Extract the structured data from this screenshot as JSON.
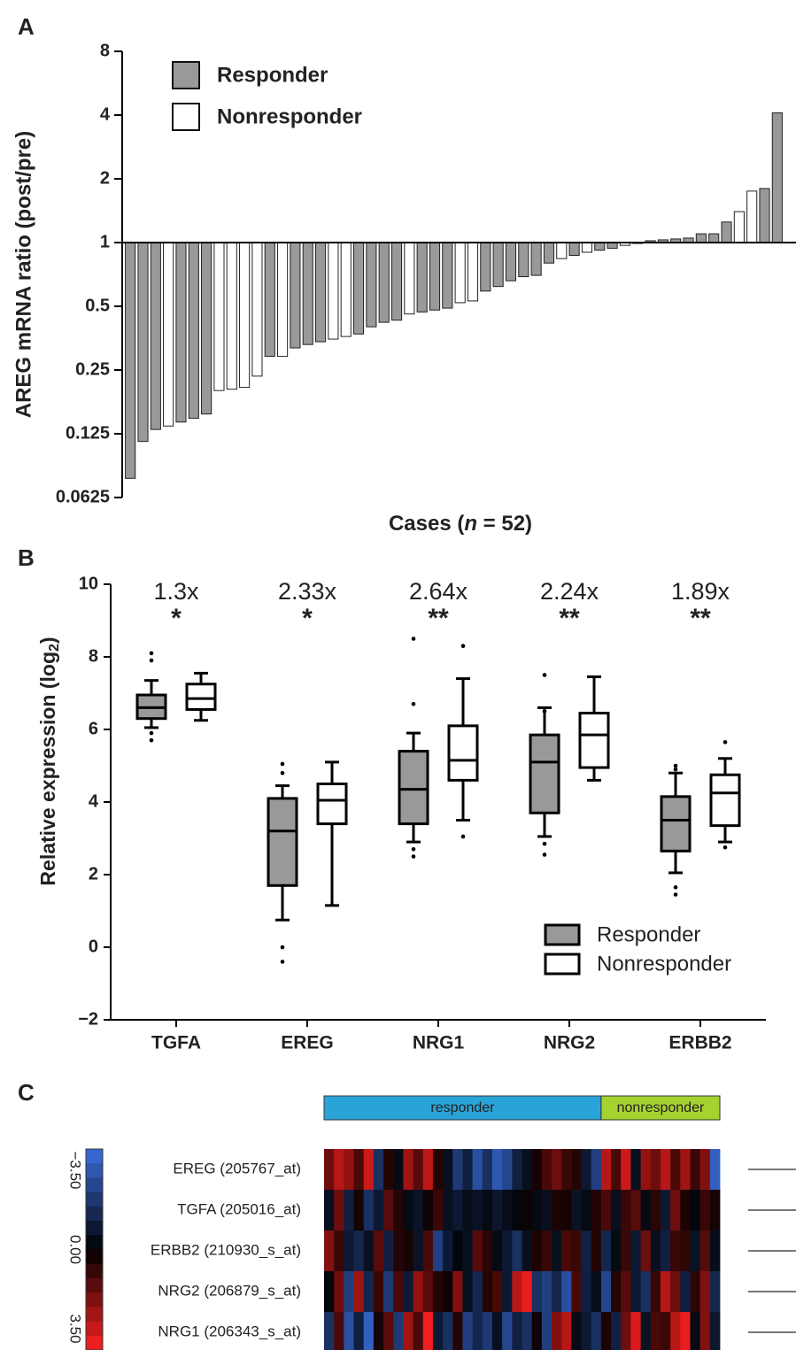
{
  "chart_data": [
    {
      "type": "bar",
      "panel": "A",
      "log_scale": true,
      "base": 2,
      "ylabel": "AREG mRNA ratio (post/pre)",
      "xlabel": [
        "Cases (",
        "n",
        " = 52)"
      ],
      "ylim": [
        0.0625,
        8
      ],
      "yticks": [
        0.0625,
        0.125,
        0.25,
        0.5,
        1,
        2,
        4,
        8
      ],
      "baseline": 1,
      "series": [
        {
          "name": "Responder",
          "color": "#999999",
          "values": [
            0.077,
            0.115,
            0.131,
            null,
            0.142,
            0.148,
            0.155,
            null,
            null,
            null,
            null,
            0.29,
            null,
            0.318,
            0.33,
            0.34,
            null,
            null,
            0.37,
            0.4,
            0.42,
            0.43,
            null,
            0.47,
            0.48,
            0.49,
            null,
            null,
            0.59,
            0.62,
            0.66,
            0.69,
            0.7,
            0.8,
            null,
            0.87,
            null,
            0.92,
            0.94,
            null,
            0.99,
            1.02,
            1.03,
            1.04,
            1.05,
            1.1,
            1.1,
            1.25,
            null,
            null,
            1.8,
            4.1
          ]
        },
        {
          "name": "Nonresponder",
          "color": "#ffffff",
          "values": [
            null,
            null,
            null,
            0.136,
            null,
            null,
            null,
            0.2,
            0.203,
            0.207,
            0.234,
            null,
            0.29,
            null,
            null,
            null,
            0.35,
            0.36,
            null,
            null,
            null,
            null,
            0.46,
            null,
            null,
            null,
            0.52,
            0.53,
            null,
            null,
            null,
            null,
            null,
            null,
            0.84,
            null,
            0.9,
            null,
            null,
            0.97,
            null,
            null,
            null,
            null,
            null,
            null,
            null,
            null,
            1.4,
            1.75,
            null,
            null
          ]
        }
      ]
    },
    {
      "type": "box",
      "panel": "B",
      "ylabel": [
        "Relative expression (log",
        "2",
        ")"
      ],
      "categories": [
        "TGFA",
        "EREG",
        "NRG1",
        "NRG2",
        "ERBB2"
      ],
      "fold": [
        "1.3x",
        "2.33x",
        "2.64x",
        "2.24x",
        "1.89x"
      ],
      "significance": [
        "*",
        "*",
        "**",
        "**",
        "**"
      ],
      "ylim": [
        -2,
        10
      ],
      "yticks": [
        {
          "value": -2,
          "label": "−2"
        },
        0,
        2,
        4,
        6,
        8,
        10
      ],
      "series": [
        {
          "name": "Responder",
          "color": "#999999",
          "boxes": [
            {
              "low": 6.05,
              "q1": 6.3,
              "median": 6.6,
              "q3": 6.95,
              "high": 7.35,
              "outliers": [
                8.1,
                7.9,
                5.9,
                5.7
              ]
            },
            {
              "low": 0.75,
              "q1": 1.7,
              "median": 3.2,
              "q3": 4.1,
              "high": 4.45,
              "outliers": [
                5.05,
                4.8,
                0,
                -0.4
              ]
            },
            {
              "low": 2.9,
              "q1": 3.4,
              "median": 4.35,
              "q3": 5.4,
              "high": 5.9,
              "outliers": [
                8.5,
                6.7,
                2.7,
                2.5
              ]
            },
            {
              "low": 3.05,
              "q1": 3.7,
              "median": 5.1,
              "q3": 5.85,
              "high": 6.6,
              "outliers": [
                7.5,
                6.5,
                2.85,
                2.55
              ]
            },
            {
              "low": 2.05,
              "q1": 2.65,
              "median": 3.5,
              "q3": 4.15,
              "high": 4.8,
              "outliers": [
                5.0,
                4.9,
                1.65,
                1.45
              ]
            }
          ]
        },
        {
          "name": "Nonresponder",
          "color": "#ffffff",
          "boxes": [
            {
              "low": 6.25,
              "q1": 6.55,
              "median": 6.85,
              "q3": 7.25,
              "high": 7.55,
              "outliers": []
            },
            {
              "low": 1.15,
              "q1": 3.4,
              "median": 4.05,
              "q3": 4.5,
              "high": 5.1,
              "outliers": []
            },
            {
              "low": 3.5,
              "q1": 4.6,
              "median": 5.15,
              "q3": 6.1,
              "high": 7.4,
              "outliers": [
                8.3,
                3.05
              ]
            },
            {
              "low": 4.6,
              "q1": 4.95,
              "median": 5.85,
              "q3": 6.45,
              "high": 7.45,
              "outliers": []
            },
            {
              "low": 2.9,
              "q1": 3.35,
              "median": 4.25,
              "q3": 4.75,
              "high": 5.2,
              "outliers": [
                5.65,
                2.75
              ]
            }
          ]
        }
      ]
    },
    {
      "type": "heatmap",
      "panel": "C",
      "groups": [
        {
          "name": "responder",
          "color": "#2aa3d8",
          "columns": 28
        },
        {
          "name": "nonresponder",
          "color": "#a6d230",
          "columns": 12
        }
      ],
      "row_labels": [
        "EREG (205767_at)",
        "TGFA (205016_at)",
        "ERBB2 (210930_s_at)",
        "NRG2 (206879_s_at)",
        "NRG1 (206343_s_at)"
      ],
      "clim": [
        -3.5,
        3.5
      ],
      "colormap": [
        "#3a6fe0",
        "#000000",
        "#ff2020"
      ],
      "cticks": [
        {
          "value": -3.5,
          "label": "−3.50"
        },
        {
          "value": 0,
          "label": "0.00"
        },
        {
          "value": 3.5,
          "label": "3.50"
        }
      ],
      "values": [
        [
          1.5,
          2.5,
          2.0,
          1.0,
          2.8,
          -1.5,
          0.5,
          -0.3,
          2.2,
          1.2,
          2.6,
          0.5,
          -0.5,
          -1.8,
          -1.0,
          -2.5,
          -1.5,
          -2.8,
          -2.2,
          -1.0,
          -0.5,
          0.3,
          1.0,
          1.5,
          0.8,
          0.5,
          -0.8,
          -2.0,
          2.5,
          1.0,
          2.8,
          -0.5,
          2.0,
          1.5,
          2.5,
          1.0,
          2.2,
          0.8,
          1.8,
          -3.0
        ],
        [
          -0.5,
          1.5,
          -1.0,
          0.3,
          -1.5,
          -0.8,
          1.2,
          0.5,
          -0.3,
          -0.6,
          0.2,
          0.8,
          -0.5,
          -0.8,
          -0.4,
          -0.6,
          -0.3,
          -0.7,
          -0.4,
          -0.2,
          0.2,
          -0.3,
          -0.5,
          0.4,
          0.3,
          -0.6,
          -0.3,
          0.5,
          1.0,
          -0.5,
          0.8,
          1.2,
          -0.3,
          0.6,
          -0.8,
          1.5,
          0.4,
          -0.2,
          0.8,
          0.3
        ],
        [
          1.8,
          0.8,
          -0.8,
          -1.2,
          -0.5,
          1.2,
          -1.0,
          0.5,
          0.3,
          -0.6,
          1.0,
          -2.0,
          -0.8,
          -0.2,
          -0.5,
          1.2,
          0.6,
          -0.3,
          -0.8,
          -1.5,
          -0.5,
          0.4,
          0.8,
          -0.5,
          1.0,
          0.8,
          -1.0,
          0.5,
          -1.2,
          -0.3,
          0.8,
          -0.8,
          1.5,
          -0.5,
          -1.0,
          0.8,
          0.6,
          -0.6,
          1.2,
          -0.4
        ],
        [
          -0.2,
          1.5,
          -2.0,
          2.2,
          -1.2,
          0.8,
          -1.8,
          1.0,
          -0.8,
          2.0,
          1.2,
          0.5,
          0.2,
          1.8,
          -0.5,
          -1.2,
          0.5,
          1.0,
          -0.8,
          2.5,
          3.2,
          -1.5,
          -2.0,
          -1.2,
          -2.5,
          1.0,
          -1.0,
          -0.4,
          -2.2,
          0.5,
          1.2,
          -0.8,
          -1.5,
          0.8,
          2.5,
          1.5,
          -1.0,
          0.6,
          1.8,
          -1.2
        ],
        [
          -1.5,
          1.0,
          -2.5,
          -1.0,
          -3.0,
          0.3,
          1.2,
          -1.8,
          2.2,
          1.0,
          3.3,
          -0.8,
          -1.5,
          0.5,
          -2.0,
          -1.2,
          -1.8,
          -0.5,
          -2.2,
          -1.0,
          -1.5,
          0.2,
          -2.0,
          1.8,
          2.5,
          -0.3,
          -0.8,
          -1.5,
          0.4,
          -1.0,
          1.5,
          3.0,
          -0.6,
          1.0,
          0.8,
          2.5,
          3.2,
          -0.3,
          1.8,
          -0.7
        ]
      ]
    }
  ]
}
